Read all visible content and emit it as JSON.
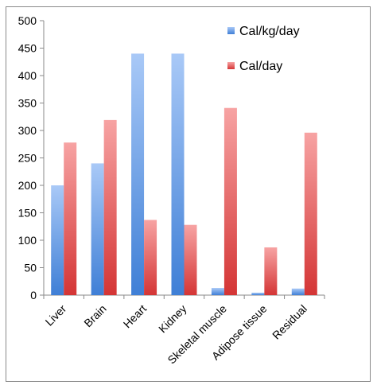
{
  "chart_data": {
    "type": "bar",
    "categories": [
      "Liver",
      "Brain",
      "Heart",
      "Kidney",
      "Skeletal muscle",
      "Adipose tissue",
      "Residual"
    ],
    "series": [
      {
        "name": "Cal/kg/day",
        "values": [
          200,
          240,
          440,
          440,
          13,
          4.5,
          12
        ],
        "color": "#4a86d8"
      },
      {
        "name": "Cal/day",
        "values": [
          278,
          319,
          137,
          128,
          341,
          87,
          296
        ],
        "color": "#d63a3a"
      }
    ],
    "title": "",
    "xlabel": "",
    "ylabel": "",
    "ylim": [
      0,
      500
    ],
    "yticks": [
      0,
      50,
      100,
      150,
      200,
      250,
      300,
      350,
      400,
      450,
      500
    ],
    "grid": false,
    "legend_position": "top-right"
  }
}
